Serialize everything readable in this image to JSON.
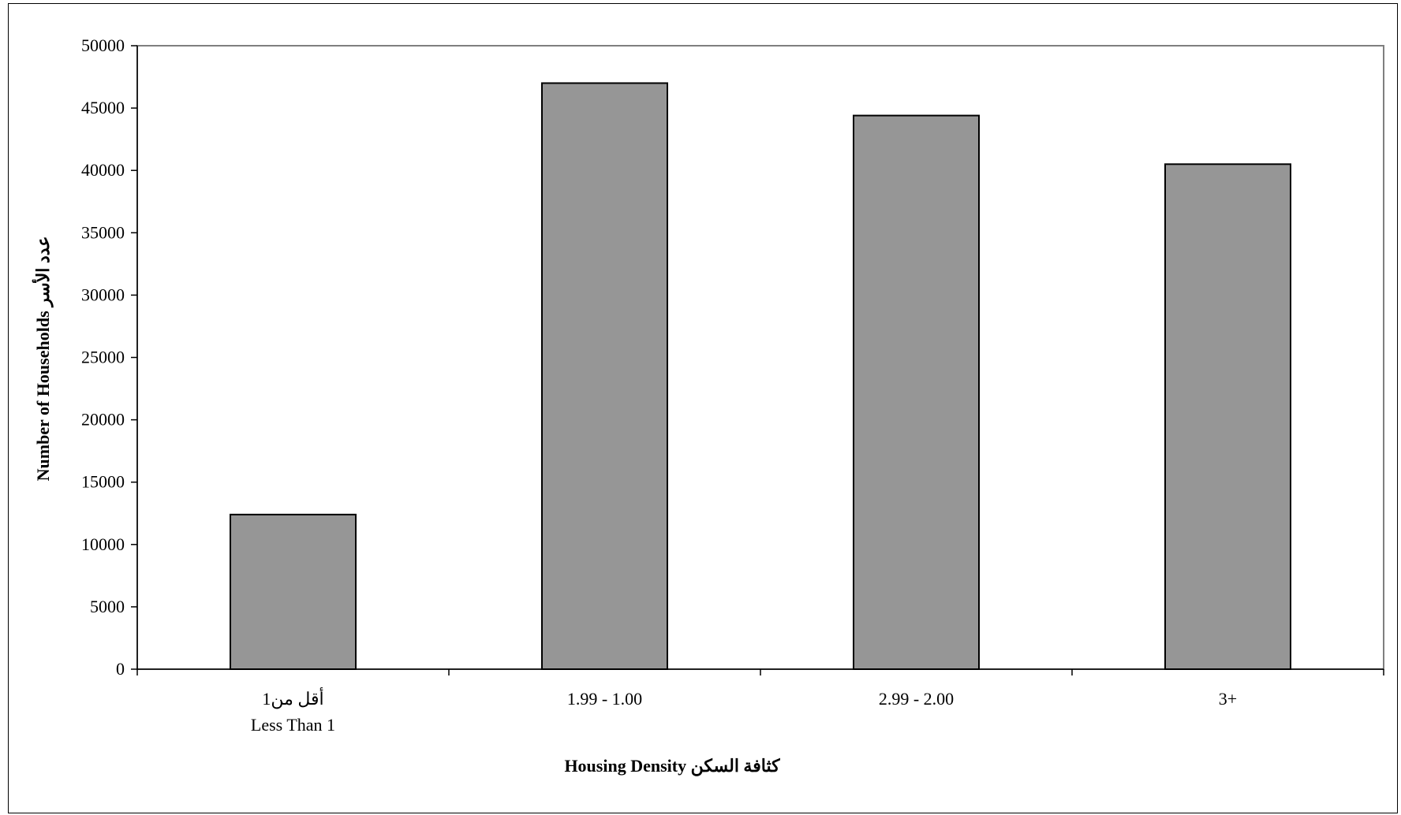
{
  "chart_data": {
    "type": "bar",
    "categories": [
      {
        "line1": "أقل من1",
        "line2": "Less Than 1"
      },
      {
        "line1": "1.99 - 1.00",
        "line2": ""
      },
      {
        "line1": "2.99 - 2.00",
        "line2": ""
      },
      {
        "line1": "3+",
        "line2": ""
      }
    ],
    "values": [
      12400,
      47000,
      44400,
      40500
    ],
    "title": "",
    "xlabel": "Housing Density كثافة السكن",
    "ylabel": "Number of Households عدد الأسر",
    "ylim": [
      0,
      50000
    ],
    "yticks": [
      "0",
      "5000",
      "10000",
      "15000",
      "20000",
      "25000",
      "30000",
      "35000",
      "40000",
      "45000",
      "50000"
    ],
    "bar_color": "#969696",
    "bar_edge_color": "#000000",
    "axis_color": "#7f7f7f",
    "grid": false,
    "legend": "none"
  }
}
